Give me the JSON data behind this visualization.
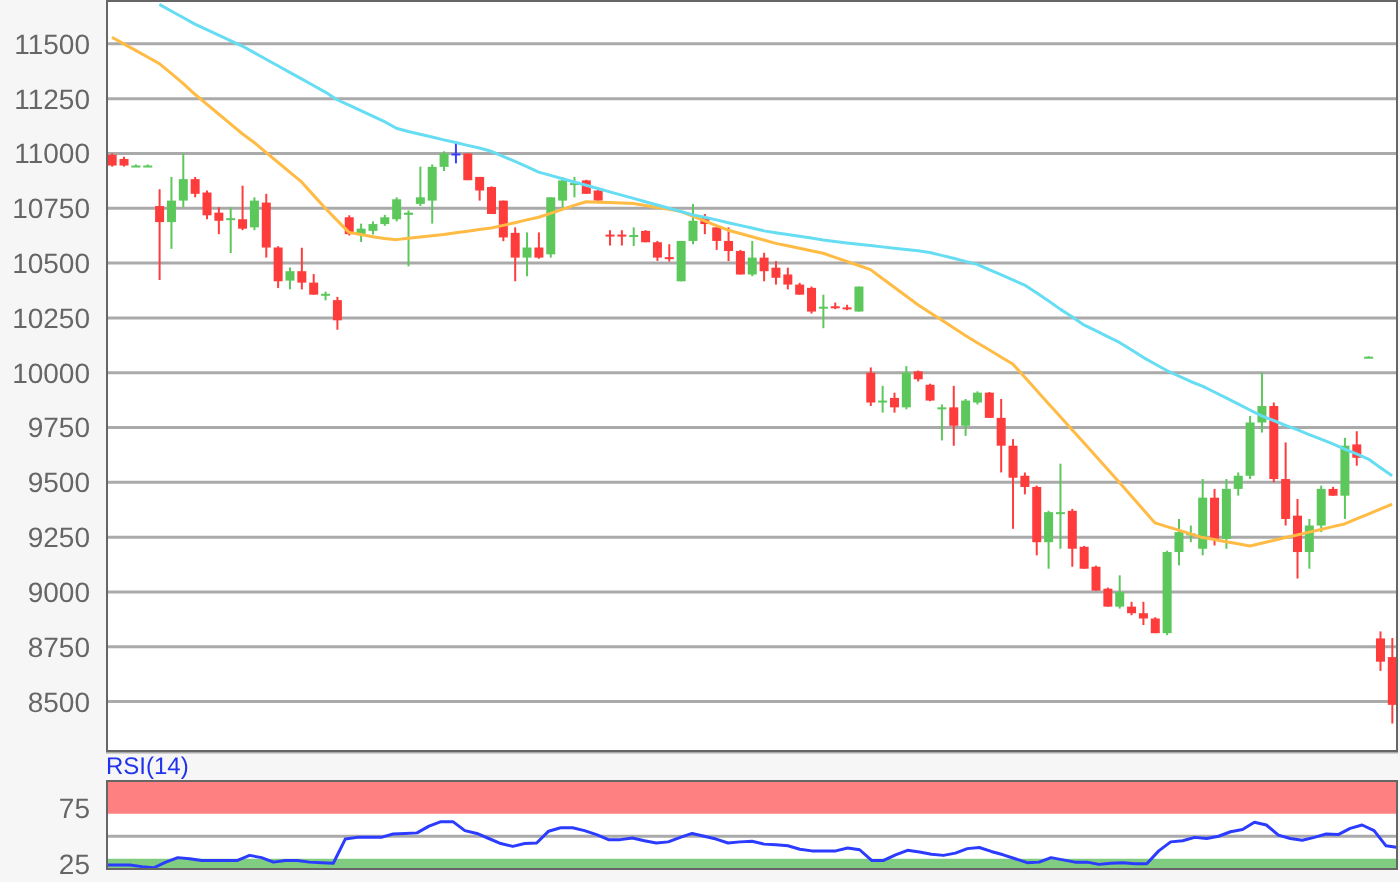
{
  "chart_data": [
    {
      "type": "candlestick",
      "categories": [
        null,
        null,
        null,
        null,
        null,
        null,
        null,
        null,
        null,
        null,
        null,
        null,
        null,
        null,
        null,
        null,
        null,
        null,
        null,
        null,
        null,
        null,
        null,
        null,
        null,
        null,
        null,
        null,
        null,
        null,
        null,
        null,
        null,
        null,
        null,
        null,
        null,
        null,
        null,
        null,
        null,
        null,
        null,
        null,
        null,
        null,
        null,
        null,
        null,
        null,
        null,
        null,
        null,
        null,
        null,
        null,
        null,
        null,
        null,
        null,
        null,
        null,
        null,
        null,
        null,
        null,
        null,
        null,
        null,
        null,
        null,
        null,
        null,
        null,
        null,
        null,
        null,
        null,
        null,
        null,
        null,
        null,
        null,
        null,
        null,
        null,
        null,
        null,
        null,
        null,
        null,
        null,
        null,
        null,
        null,
        null,
        null,
        null,
        null,
        null,
        null,
        null,
        null,
        null,
        null,
        null,
        null,
        null,
        null
      ],
      "ohlc": [
        [
          10994,
          11000,
          10940,
          10945
        ],
        [
          10975,
          10985,
          10940,
          10945
        ],
        [
          10945,
          10950,
          10940,
          10945
        ],
        [
          10945,
          10950,
          10940,
          10945
        ],
        [
          10760,
          10837,
          10423,
          10687
        ],
        [
          10687,
          10893,
          10565,
          10785
        ],
        [
          10785,
          11000,
          10755,
          10883
        ],
        [
          10883,
          10893,
          10800,
          10816
        ],
        [
          10822,
          10831,
          10700,
          10718
        ],
        [
          10730,
          10755,
          10632,
          10693
        ],
        [
          10700,
          10755,
          10546,
          10705
        ],
        [
          10700,
          10853,
          10650,
          10657
        ],
        [
          10663,
          10800,
          10650,
          10785
        ],
        [
          10776,
          10816,
          10525,
          10571
        ],
        [
          10571,
          10577,
          10386,
          10417
        ],
        [
          10420,
          10480,
          10380,
          10463
        ],
        [
          10463,
          10570,
          10380,
          10411
        ],
        [
          10411,
          10450,
          10356,
          10356
        ],
        [
          10356,
          10370,
          10330,
          10360
        ],
        [
          10331,
          10346,
          10196,
          10239
        ],
        [
          10709,
          10718,
          10626,
          10632
        ],
        [
          10632,
          10680,
          10596,
          10657
        ],
        [
          10647,
          10690,
          10630,
          10678
        ],
        [
          10678,
          10720,
          10670,
          10709
        ],
        [
          10700,
          10800,
          10690,
          10791
        ],
        [
          10720,
          10740,
          10485,
          10730
        ],
        [
          10770,
          10940,
          10760,
          10800
        ],
        [
          10785,
          10950,
          10680,
          10939
        ],
        [
          10939,
          11010,
          10920,
          11000
        ],
        [
          11000,
          11050,
          10955,
          11000
        ],
        [
          11000,
          11000,
          10878,
          10878
        ],
        [
          10893,
          10893,
          10785,
          10831
        ],
        [
          10847,
          10850,
          10724,
          10724
        ],
        [
          10785,
          10785,
          10600,
          10617
        ],
        [
          10638,
          10663,
          10417,
          10525
        ],
        [
          10525,
          10640,
          10440,
          10571
        ],
        [
          10571,
          10640,
          10520,
          10525
        ],
        [
          10540,
          10800,
          10525,
          10800
        ],
        [
          10785,
          10893,
          10755,
          10877
        ],
        [
          10862,
          10893,
          10800,
          10865
        ],
        [
          10877,
          10880,
          10816,
          10816
        ],
        [
          10831,
          10835,
          10785,
          10785
        ],
        [
          10630,
          10650,
          10580,
          10626
        ],
        [
          10630,
          10650,
          10580,
          10626
        ],
        [
          10624,
          10663,
          10578,
          10628
        ],
        [
          10647,
          10650,
          10595,
          10595
        ],
        [
          10595,
          10601,
          10510,
          10525
        ],
        [
          10527,
          10586,
          10507,
          10525
        ],
        [
          10417,
          10601,
          10417,
          10601
        ],
        [
          10601,
          10770,
          10586,
          10693
        ],
        [
          10709,
          10724,
          10632,
          10678
        ],
        [
          10663,
          10663,
          10560,
          10601
        ],
        [
          10601,
          10663,
          10509,
          10555
        ],
        [
          10555,
          10560,
          10448,
          10448
        ],
        [
          10448,
          10601,
          10440,
          10525
        ],
        [
          10525,
          10547,
          10417,
          10463
        ],
        [
          10479,
          10509,
          10402,
          10433
        ],
        [
          10448,
          10479,
          10380,
          10402
        ],
        [
          10402,
          10410,
          10356,
          10356
        ],
        [
          10387,
          10393,
          10270,
          10279
        ],
        [
          10299,
          10356,
          10203,
          10301
        ],
        [
          10303,
          10320,
          10290,
          10300
        ],
        [
          10298,
          10310,
          10285,
          10295
        ],
        [
          10279,
          10393,
          10279,
          10393
        ],
        [
          10000,
          10024,
          9848,
          9864
        ],
        [
          9870,
          9940,
          9818,
          9873
        ],
        [
          9885,
          9909,
          9818,
          9842
        ],
        [
          9842,
          10030,
          9833,
          10000
        ],
        [
          10006,
          10010,
          9960,
          9970
        ],
        [
          9945,
          9950,
          9870,
          9873
        ],
        [
          9840,
          9855,
          9691,
          9842
        ],
        [
          9842,
          9940,
          9667,
          9758
        ],
        [
          9758,
          9880,
          9712,
          9873
        ],
        [
          9864,
          9915,
          9855,
          9909
        ],
        [
          9909,
          9912,
          9794,
          9794
        ],
        [
          9794,
          9880,
          9545,
          9667
        ],
        [
          9667,
          9697,
          9288,
          9521
        ],
        [
          9530,
          9545,
          9445,
          9479
        ],
        [
          9479,
          9485,
          9167,
          9227
        ],
        [
          9227,
          9370,
          9106,
          9364
        ],
        [
          9362,
          9585,
          9197,
          9364
        ],
        [
          9370,
          9379,
          9115,
          9197
        ],
        [
          9206,
          9210,
          9106,
          9106
        ],
        [
          9115,
          9120,
          9006,
          9006
        ],
        [
          9015,
          9020,
          8933,
          8933
        ],
        [
          8933,
          9076,
          8924,
          9000
        ],
        [
          8933,
          8955,
          8894,
          8903
        ],
        [
          8903,
          8955,
          8849,
          8879
        ],
        [
          8879,
          8885,
          8812,
          8812
        ],
        [
          8812,
          9188,
          8803,
          9182
        ],
        [
          9182,
          9333,
          9121,
          9273
        ],
        [
          9265,
          9303,
          9227,
          9267
        ],
        [
          9197,
          9515,
          9167,
          9430
        ],
        [
          9430,
          9470,
          9212,
          9242
        ],
        [
          9242,
          9515,
          9197,
          9470
        ],
        [
          9470,
          9545,
          9439,
          9530
        ],
        [
          9530,
          9803,
          9515,
          9773
        ],
        [
          9773,
          10000,
          9727,
          9848
        ],
        [
          9848,
          9864,
          9500,
          9515
        ],
        [
          9515,
          9682,
          9303,
          9333
        ],
        [
          9348,
          9424,
          9061,
          9182
        ],
        [
          9182,
          9333,
          9106,
          9303
        ],
        [
          9303,
          9485,
          9273,
          9470
        ],
        [
          9470,
          9479,
          9439,
          9439
        ],
        [
          9439,
          9703,
          9333,
          9667
        ],
        [
          9673,
          9733,
          9576,
          9612
        ],
        [
          10073,
          10075,
          10071,
          10073
        ],
        [
          8788,
          8820,
          8640,
          8682
        ],
        [
          8703,
          8790,
          8400,
          8485
        ]
      ],
      "colors": [
        "#ff3c3c",
        "#ff3c3c",
        "#5cc85c",
        "#5cc85c",
        "#ff3c3c",
        "#5cc85c",
        "#5cc85c",
        "#ff3c3c",
        "#ff3c3c",
        "#ff3c3c",
        "#5cc85c",
        "#ff3c3c",
        "#5cc85c",
        "#ff3c3c",
        "#ff3c3c",
        "#5cc85c",
        "#ff3c3c",
        "#ff3c3c",
        "#5cc85c",
        "#ff3c3c",
        "#ff3c3c",
        "#5cc85c",
        "#5cc85c",
        "#5cc85c",
        "#5cc85c",
        "#5cc85c",
        "#5cc85c",
        "#5cc85c",
        "#5cc85c",
        "#3c3cff",
        "#ff3c3c",
        "#ff3c3c",
        "#ff3c3c",
        "#ff3c3c",
        "#ff3c3c",
        "#5cc85c",
        "#ff3c3c",
        "#5cc85c",
        "#5cc85c",
        "#5cc85c",
        "#ff3c3c",
        "#ff3c3c",
        "#ff3c3c",
        "#ff3c3c",
        "#5cc85c",
        "#ff3c3c",
        "#ff3c3c",
        "#ff3c3c",
        "#5cc85c",
        "#5cc85c",
        "#ff3c3c",
        "#ff3c3c",
        "#ff3c3c",
        "#ff3c3c",
        "#5cc85c",
        "#ff3c3c",
        "#ff3c3c",
        "#ff3c3c",
        "#ff3c3c",
        "#ff3c3c",
        "#5cc85c",
        "#ff3c3c",
        "#ff3c3c",
        "#5cc85c",
        "#ff3c3c",
        "#5cc85c",
        "#ff3c3c",
        "#5cc85c",
        "#ff3c3c",
        "#ff3c3c",
        "#5cc85c",
        "#ff3c3c",
        "#5cc85c",
        "#5cc85c",
        "#ff3c3c",
        "#ff3c3c",
        "#ff3c3c",
        "#ff3c3c",
        "#ff3c3c",
        "#5cc85c",
        "#5cc85c",
        "#ff3c3c",
        "#ff3c3c",
        "#ff3c3c",
        "#ff3c3c",
        "#5cc85c",
        "#ff3c3c",
        "#ff3c3c",
        "#ff3c3c",
        "#5cc85c",
        "#5cc85c",
        "#5cc85c",
        "#5cc85c",
        "#ff3c3c",
        "#5cc85c",
        "#5cc85c",
        "#5cc85c",
        "#5cc85c",
        "#ff3c3c",
        "#ff3c3c",
        "#ff3c3c",
        "#5cc85c",
        "#5cc85c",
        "#ff3c3c",
        "#5cc85c",
        "#ff3c3c",
        "#5cc85c",
        "#ff3c3c",
        "#ff3c3c"
      ],
      "series": [
        {
          "type": "line",
          "color": "#ffbb44",
          "values": [
            11530,
            11500,
            11470,
            11440,
            11410,
            11365,
            11320,
            11270,
            11225,
            11180,
            11135,
            11090,
            11050,
            11005,
            10960,
            10915,
            10870,
            10810,
            10750,
            10695,
            10640,
            10630,
            10620,
            10612,
            10607,
            10613,
            10619,
            10625,
            10630,
            10638,
            10645,
            10653,
            10660,
            10672,
            10684,
            10697,
            10709,
            10727,
            10745,
            10763,
            10780,
            10778,
            10776,
            10774,
            10772,
            10763,
            10754,
            10745,
            10735,
            10714,
            10693,
            10671,
            10650,
            10635,
            10620,
            10605,
            10590,
            10579,
            10568,
            10556,
            10545,
            10526,
            10508,
            10489,
            10470,
            10430,
            10390,
            10350,
            10310,
            10275,
            10240,
            10205,
            10170,
            10137,
            10105,
            10072,
            10040,
            9980,
            9920,
            9860,
            9800,
            9740,
            9680,
            9620,
            9560,
            9499,
            9438,
            9376,
            9315,
            9298,
            9282,
            9265,
            9248,
            9239,
            9229,
            9220,
            9210,
            9222,
            9235,
            9248,
            9260,
            9273,
            9285,
            9298,
            9310,
            9333,
            9355,
            9378,
            9400
          ]
        },
        {
          "type": "line",
          "color": "#66ddf2",
          "values": [
            null,
            null,
            null,
            null,
            11680,
            11650,
            11620,
            11590,
            11565,
            11540,
            11515,
            11490,
            11460,
            11430,
            11400,
            11370,
            11340,
            11310,
            11280,
            11245,
            11220,
            11195,
            11170,
            11145,
            11115,
            11100,
            11088,
            11075,
            11062,
            11050,
            11037,
            11025,
            11010,
            10987,
            10964,
            10940,
            10915,
            10900,
            10885,
            10870,
            10855,
            10840,
            10825,
            10810,
            10795,
            10780,
            10765,
            10750,
            10735,
            10720,
            10709,
            10697,
            10684,
            10672,
            10660,
            10647,
            10638,
            10630,
            10622,
            10614,
            10605,
            10598,
            10592,
            10586,
            10580,
            10574,
            10568,
            10562,
            10556,
            10548,
            10535,
            10522,
            10508,
            10494,
            10470,
            10447,
            10423,
            10400,
            10365,
            10328,
            10290,
            10255,
            10218,
            10192,
            10165,
            10138,
            10105,
            10070,
            10040,
            10010,
            9985,
            9960,
            9939,
            9912,
            9885,
            9858,
            9830,
            9803,
            9782,
            9760,
            9740,
            9718,
            9697,
            9675,
            9652,
            9630,
            9606,
            9568,
            9530
          ]
        }
      ],
      "ylim": [
        8270,
        11700
      ],
      "yticks": [
        8500,
        8750,
        9000,
        9250,
        9500,
        9750,
        10000,
        10250,
        10500,
        10750,
        11000,
        11250,
        11500
      ],
      "grid": "y",
      "tick_labels": "y"
    },
    {
      "type": "line",
      "title": "RSI(14)",
      "categories": [
        null,
        null,
        null,
        null,
        null,
        null,
        null,
        null,
        null,
        null,
        null,
        null,
        null,
        null,
        null,
        null,
        null,
        null,
        null,
        null,
        null,
        null,
        null,
        null,
        null,
        null,
        null,
        null,
        null,
        null,
        null,
        null,
        null,
        null,
        null,
        null,
        null,
        null,
        null,
        null,
        null,
        null,
        null,
        null,
        null,
        null,
        null,
        null,
        null,
        null,
        null,
        null,
        null,
        null,
        null,
        null,
        null,
        null,
        null,
        null,
        null,
        null,
        null,
        null,
        null,
        null,
        null,
        null,
        null,
        null,
        null,
        null,
        null,
        null,
        null,
        null,
        null,
        null,
        null,
        null,
        null,
        null,
        null,
        null,
        null,
        null,
        null,
        null,
        null,
        null,
        null,
        null,
        null,
        null,
        null,
        null,
        null,
        null,
        null,
        null,
        null,
        null,
        null,
        null,
        null,
        null,
        null,
        null,
        null
      ],
      "series": [
        {
          "color": "#2b3bff",
          "values": [
            24.5,
            24.5,
            24.5,
            23,
            22,
            27,
            31,
            30,
            28.5,
            28.5,
            28.5,
            28.5,
            33,
            31,
            27,
            28.5,
            28.5,
            27,
            26.5,
            26,
            47.5,
            49,
            49,
            49,
            52,
            52.5,
            53,
            59,
            63,
            63,
            55,
            52.5,
            48,
            43.5,
            41,
            43.5,
            44,
            54.5,
            57.5,
            57.5,
            55,
            51.5,
            47,
            47,
            48.5,
            46,
            44,
            45,
            49,
            52.5,
            50,
            47.5,
            44,
            45,
            45.5,
            43,
            42.5,
            41.5,
            38.5,
            37,
            37,
            37,
            39.5,
            38,
            28.5,
            28.5,
            33.5,
            37.5,
            36,
            34,
            33,
            35,
            39,
            40,
            36.5,
            33.5,
            30,
            26.5,
            27,
            31,
            29,
            27,
            27,
            25,
            26,
            26.5,
            25.5,
            25.5,
            37,
            45,
            46,
            49,
            48,
            50,
            54,
            56,
            62.5,
            60,
            51,
            48,
            46.5,
            49,
            52,
            51.5,
            57,
            60,
            55,
            41.5,
            40
          ]
        }
      ],
      "ylim": [
        20,
        100
      ],
      "yticks": [
        25,
        75
      ],
      "bands": [
        {
          "axis": "y",
          "from": 70,
          "to": 100,
          "color": "#ff8080"
        },
        {
          "axis": "y",
          "from": 20,
          "to": 30,
          "color": "#80cc80"
        }
      ],
      "ref_lines": [
        {
          "axis": "y",
          "value": 50,
          "color": "#aaaaaa"
        }
      ],
      "tick_labels": "y"
    }
  ]
}
